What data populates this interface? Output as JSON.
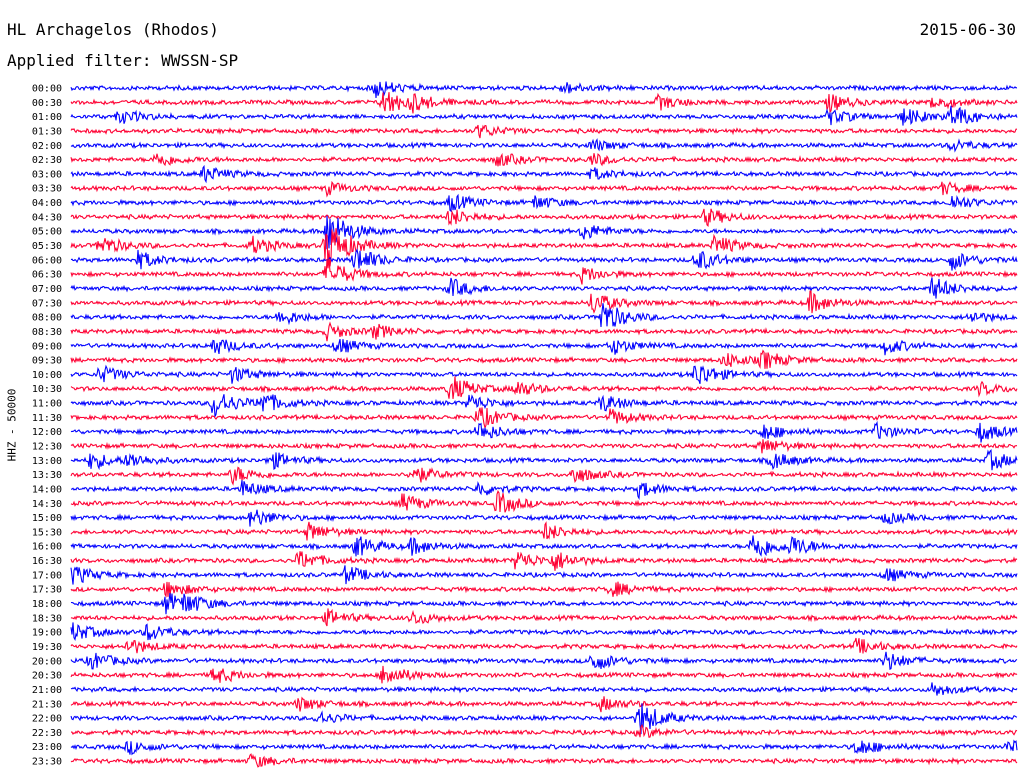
{
  "header": {
    "station": "HL Archagelos (Rhodos)",
    "date": "2015-06-30",
    "filter": "Applied filter: WWSSN-SP"
  },
  "chart_data": {
    "type": "line",
    "title": "HL Archagelos (Rhodos)",
    "ylabel": "HHZ - 50000",
    "rows": [
      "00:00",
      "00:30",
      "01:00",
      "01:30",
      "02:00",
      "02:30",
      "03:00",
      "03:30",
      "04:00",
      "04:30",
      "05:00",
      "05:30",
      "06:00",
      "06:30",
      "07:00",
      "07:30",
      "08:00",
      "08:30",
      "09:00",
      "09:30",
      "10:00",
      "10:30",
      "11:00",
      "11:30",
      "12:00",
      "12:30",
      "13:00",
      "13:30",
      "14:00",
      "14:30",
      "15:00",
      "15:30",
      "16:00",
      "16:30",
      "17:00",
      "17:30",
      "18:00",
      "18:30",
      "19:00",
      "19:30",
      "20:00",
      "20:30",
      "21:00",
      "21:30",
      "22:00",
      "22:30",
      "23:00",
      "23:30"
    ],
    "colors": [
      "#0000ff",
      "#ff0033"
    ],
    "events": [
      {
        "row": 0,
        "pos": 0.32,
        "amp": 10
      },
      {
        "row": 0,
        "pos": 0.52,
        "amp": 6
      },
      {
        "row": 1,
        "pos": 0.33,
        "amp": 14
      },
      {
        "row": 1,
        "pos": 0.36,
        "amp": 7
      },
      {
        "row": 1,
        "pos": 0.62,
        "amp": 7
      },
      {
        "row": 1,
        "pos": 0.8,
        "amp": 9
      },
      {
        "row": 1,
        "pos": 0.91,
        "amp": 8
      },
      {
        "row": 2,
        "pos": 0.05,
        "amp": 7
      },
      {
        "row": 2,
        "pos": 0.8,
        "amp": 8
      },
      {
        "row": 2,
        "pos": 0.88,
        "amp": 9
      },
      {
        "row": 2,
        "pos": 0.93,
        "amp": 12
      },
      {
        "row": 3,
        "pos": 0.43,
        "amp": 7
      },
      {
        "row": 4,
        "pos": 0.55,
        "amp": 6
      },
      {
        "row": 4,
        "pos": 0.93,
        "amp": 6
      },
      {
        "row": 5,
        "pos": 0.09,
        "amp": 8
      },
      {
        "row": 5,
        "pos": 0.45,
        "amp": 7
      },
      {
        "row": 5,
        "pos": 0.55,
        "amp": 6
      },
      {
        "row": 6,
        "pos": 0.14,
        "amp": 8
      },
      {
        "row": 6,
        "pos": 0.55,
        "amp": 6
      },
      {
        "row": 7,
        "pos": 0.27,
        "amp": 6
      },
      {
        "row": 7,
        "pos": 0.92,
        "amp": 6
      },
      {
        "row": 8,
        "pos": 0.4,
        "amp": 9
      },
      {
        "row": 8,
        "pos": 0.49,
        "amp": 7
      },
      {
        "row": 8,
        "pos": 0.93,
        "amp": 8
      },
      {
        "row": 9,
        "pos": 0.4,
        "amp": 9
      },
      {
        "row": 9,
        "pos": 0.67,
        "amp": 9
      },
      {
        "row": 10,
        "pos": 0.27,
        "amp": 24
      },
      {
        "row": 10,
        "pos": 0.54,
        "amp": 9
      },
      {
        "row": 11,
        "pos": 0.27,
        "amp": 28
      },
      {
        "row": 11,
        "pos": 0.03,
        "amp": 10
      },
      {
        "row": 11,
        "pos": 0.19,
        "amp": 9
      },
      {
        "row": 11,
        "pos": 0.68,
        "amp": 10
      },
      {
        "row": 12,
        "pos": 0.3,
        "amp": 14
      },
      {
        "row": 12,
        "pos": 0.07,
        "amp": 9
      },
      {
        "row": 12,
        "pos": 0.66,
        "amp": 12
      },
      {
        "row": 12,
        "pos": 0.93,
        "amp": 10
      },
      {
        "row": 13,
        "pos": 0.27,
        "amp": 16
      },
      {
        "row": 13,
        "pos": 0.54,
        "amp": 8
      },
      {
        "row": 14,
        "pos": 0.4,
        "amp": 10
      },
      {
        "row": 14,
        "pos": 0.91,
        "amp": 12
      },
      {
        "row": 15,
        "pos": 0.55,
        "amp": 12
      },
      {
        "row": 15,
        "pos": 0.78,
        "amp": 11
      },
      {
        "row": 16,
        "pos": 0.56,
        "amp": 18
      },
      {
        "row": 16,
        "pos": 0.22,
        "amp": 8
      },
      {
        "row": 16,
        "pos": 0.95,
        "amp": 6
      },
      {
        "row": 17,
        "pos": 0.27,
        "amp": 8
      },
      {
        "row": 17,
        "pos": 0.32,
        "amp": 7
      },
      {
        "row": 18,
        "pos": 0.15,
        "amp": 9
      },
      {
        "row": 18,
        "pos": 0.28,
        "amp": 8
      },
      {
        "row": 18,
        "pos": 0.57,
        "amp": 9
      },
      {
        "row": 18,
        "pos": 0.86,
        "amp": 8
      },
      {
        "row": 19,
        "pos": 0.69,
        "amp": 8
      },
      {
        "row": 19,
        "pos": 0.73,
        "amp": 9
      },
      {
        "row": 20,
        "pos": 0.03,
        "amp": 9
      },
      {
        "row": 20,
        "pos": 0.17,
        "amp": 8
      },
      {
        "row": 20,
        "pos": 0.66,
        "amp": 14
      },
      {
        "row": 21,
        "pos": 0.4,
        "amp": 14
      },
      {
        "row": 21,
        "pos": 0.47,
        "amp": 8
      },
      {
        "row": 21,
        "pos": 0.96,
        "amp": 6
      },
      {
        "row": 22,
        "pos": 0.15,
        "amp": 16
      },
      {
        "row": 22,
        "pos": 0.2,
        "amp": 11
      },
      {
        "row": 22,
        "pos": 0.42,
        "amp": 9
      },
      {
        "row": 22,
        "pos": 0.56,
        "amp": 9
      },
      {
        "row": 23,
        "pos": 0.43,
        "amp": 12
      },
      {
        "row": 23,
        "pos": 0.57,
        "amp": 8
      },
      {
        "row": 24,
        "pos": 0.43,
        "amp": 10
      },
      {
        "row": 24,
        "pos": 0.73,
        "amp": 9
      },
      {
        "row": 24,
        "pos": 0.85,
        "amp": 8
      },
      {
        "row": 24,
        "pos": 0.96,
        "amp": 10
      },
      {
        "row": 25,
        "pos": 0.73,
        "amp": 8
      },
      {
        "row": 26,
        "pos": 0.02,
        "amp": 9
      },
      {
        "row": 26,
        "pos": 0.06,
        "amp": 7
      },
      {
        "row": 26,
        "pos": 0.21,
        "amp": 9
      },
      {
        "row": 26,
        "pos": 0.74,
        "amp": 9
      },
      {
        "row": 26,
        "pos": 0.97,
        "amp": 10
      },
      {
        "row": 27,
        "pos": 0.17,
        "amp": 9
      },
      {
        "row": 27,
        "pos": 0.36,
        "amp": 10
      },
      {
        "row": 27,
        "pos": 0.53,
        "amp": 9
      },
      {
        "row": 28,
        "pos": 0.18,
        "amp": 8
      },
      {
        "row": 28,
        "pos": 0.43,
        "amp": 7
      },
      {
        "row": 28,
        "pos": 0.6,
        "amp": 8
      },
      {
        "row": 29,
        "pos": 0.35,
        "amp": 9
      },
      {
        "row": 29,
        "pos": 0.45,
        "amp": 12
      },
      {
        "row": 30,
        "pos": 0.19,
        "amp": 10
      },
      {
        "row": 30,
        "pos": 0.86,
        "amp": 6
      },
      {
        "row": 31,
        "pos": 0.25,
        "amp": 9
      },
      {
        "row": 31,
        "pos": 0.5,
        "amp": 9
      },
      {
        "row": 32,
        "pos": 0.3,
        "amp": 11
      },
      {
        "row": 32,
        "pos": 0.36,
        "amp": 8
      },
      {
        "row": 32,
        "pos": 0.72,
        "amp": 16
      },
      {
        "row": 32,
        "pos": 0.76,
        "amp": 9
      },
      {
        "row": 33,
        "pos": 0.24,
        "amp": 10
      },
      {
        "row": 33,
        "pos": 0.47,
        "amp": 10
      },
      {
        "row": 33,
        "pos": 0.51,
        "amp": 9
      },
      {
        "row": 34,
        "pos": 0.0,
        "amp": 10
      },
      {
        "row": 34,
        "pos": 0.29,
        "amp": 9
      },
      {
        "row": 34,
        "pos": 0.86,
        "amp": 7
      },
      {
        "row": 35,
        "pos": 0.1,
        "amp": 9
      },
      {
        "row": 35,
        "pos": 0.57,
        "amp": 8
      },
      {
        "row": 36,
        "pos": 0.1,
        "amp": 11
      },
      {
        "row": 36,
        "pos": 0.12,
        "amp": 8
      },
      {
        "row": 37,
        "pos": 0.27,
        "amp": 8
      },
      {
        "row": 37,
        "pos": 0.36,
        "amp": 7
      },
      {
        "row": 38,
        "pos": 0.0,
        "amp": 10
      },
      {
        "row": 38,
        "pos": 0.08,
        "amp": 9
      },
      {
        "row": 39,
        "pos": 0.06,
        "amp": 8
      },
      {
        "row": 39,
        "pos": 0.83,
        "amp": 8
      },
      {
        "row": 40,
        "pos": 0.02,
        "amp": 9
      },
      {
        "row": 40,
        "pos": 0.55,
        "amp": 11
      },
      {
        "row": 40,
        "pos": 0.86,
        "amp": 10
      },
      {
        "row": 41,
        "pos": 0.15,
        "amp": 9
      },
      {
        "row": 41,
        "pos": 0.33,
        "amp": 12
      },
      {
        "row": 42,
        "pos": 0.91,
        "amp": 7
      },
      {
        "row": 43,
        "pos": 0.24,
        "amp": 7
      },
      {
        "row": 43,
        "pos": 0.56,
        "amp": 7
      },
      {
        "row": 44,
        "pos": 0.6,
        "amp": 18
      },
      {
        "row": 44,
        "pos": 0.26,
        "amp": 7
      },
      {
        "row": 45,
        "pos": 0.6,
        "amp": 6
      },
      {
        "row": 46,
        "pos": 0.06,
        "amp": 7
      },
      {
        "row": 46,
        "pos": 0.83,
        "amp": 9
      },
      {
        "row": 46,
        "pos": 0.99,
        "amp": 6
      },
      {
        "row": 47,
        "pos": 0.19,
        "amp": 7
      }
    ]
  }
}
